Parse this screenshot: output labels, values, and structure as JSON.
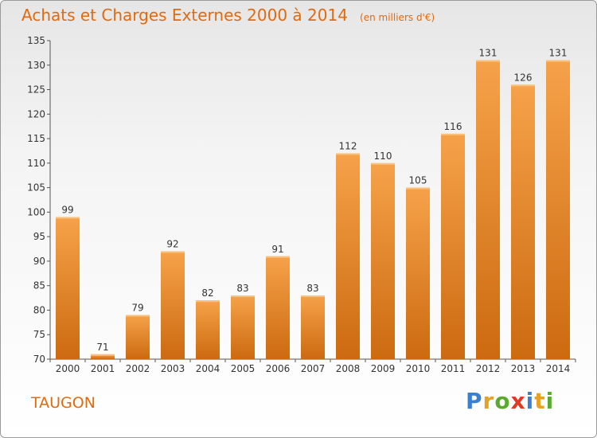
{
  "title": "Achats et Charges Externes 2000 à 2014",
  "subtitle": "(en milliers d'€)",
  "place": "TAUGON",
  "logo": {
    "letters": [
      "P",
      "r",
      "o",
      "x",
      "i",
      "t",
      "i"
    ],
    "colors": [
      "#3a7fd0",
      "#e8a020",
      "#5aaa30",
      "#e03a20",
      "#3a7fd0",
      "#e8a020",
      "#5aaa30"
    ]
  },
  "colors": {
    "bar_light": "#f6a24a",
    "bar_dark": "#cc6a10",
    "text_orange": "#e06a10",
    "axis": "#555555"
  },
  "chart_data": {
    "type": "bar",
    "title": "Achats et Charges Externes 2000 à 2014",
    "subtitle": "(en milliers d'€)",
    "categories": [
      "2000",
      "2001",
      "2002",
      "2003",
      "2004",
      "2005",
      "2006",
      "2007",
      "2008",
      "2009",
      "2010",
      "2011",
      "2012",
      "2013",
      "2014"
    ],
    "values": [
      99,
      71,
      79,
      92,
      82,
      83,
      91,
      83,
      112,
      110,
      105,
      116,
      131,
      126,
      131
    ],
    "ylim": [
      70,
      135
    ],
    "yticks": [
      70,
      75,
      80,
      85,
      90,
      95,
      100,
      105,
      110,
      115,
      120,
      125,
      130,
      135
    ],
    "grid": false,
    "data_labels": true
  }
}
